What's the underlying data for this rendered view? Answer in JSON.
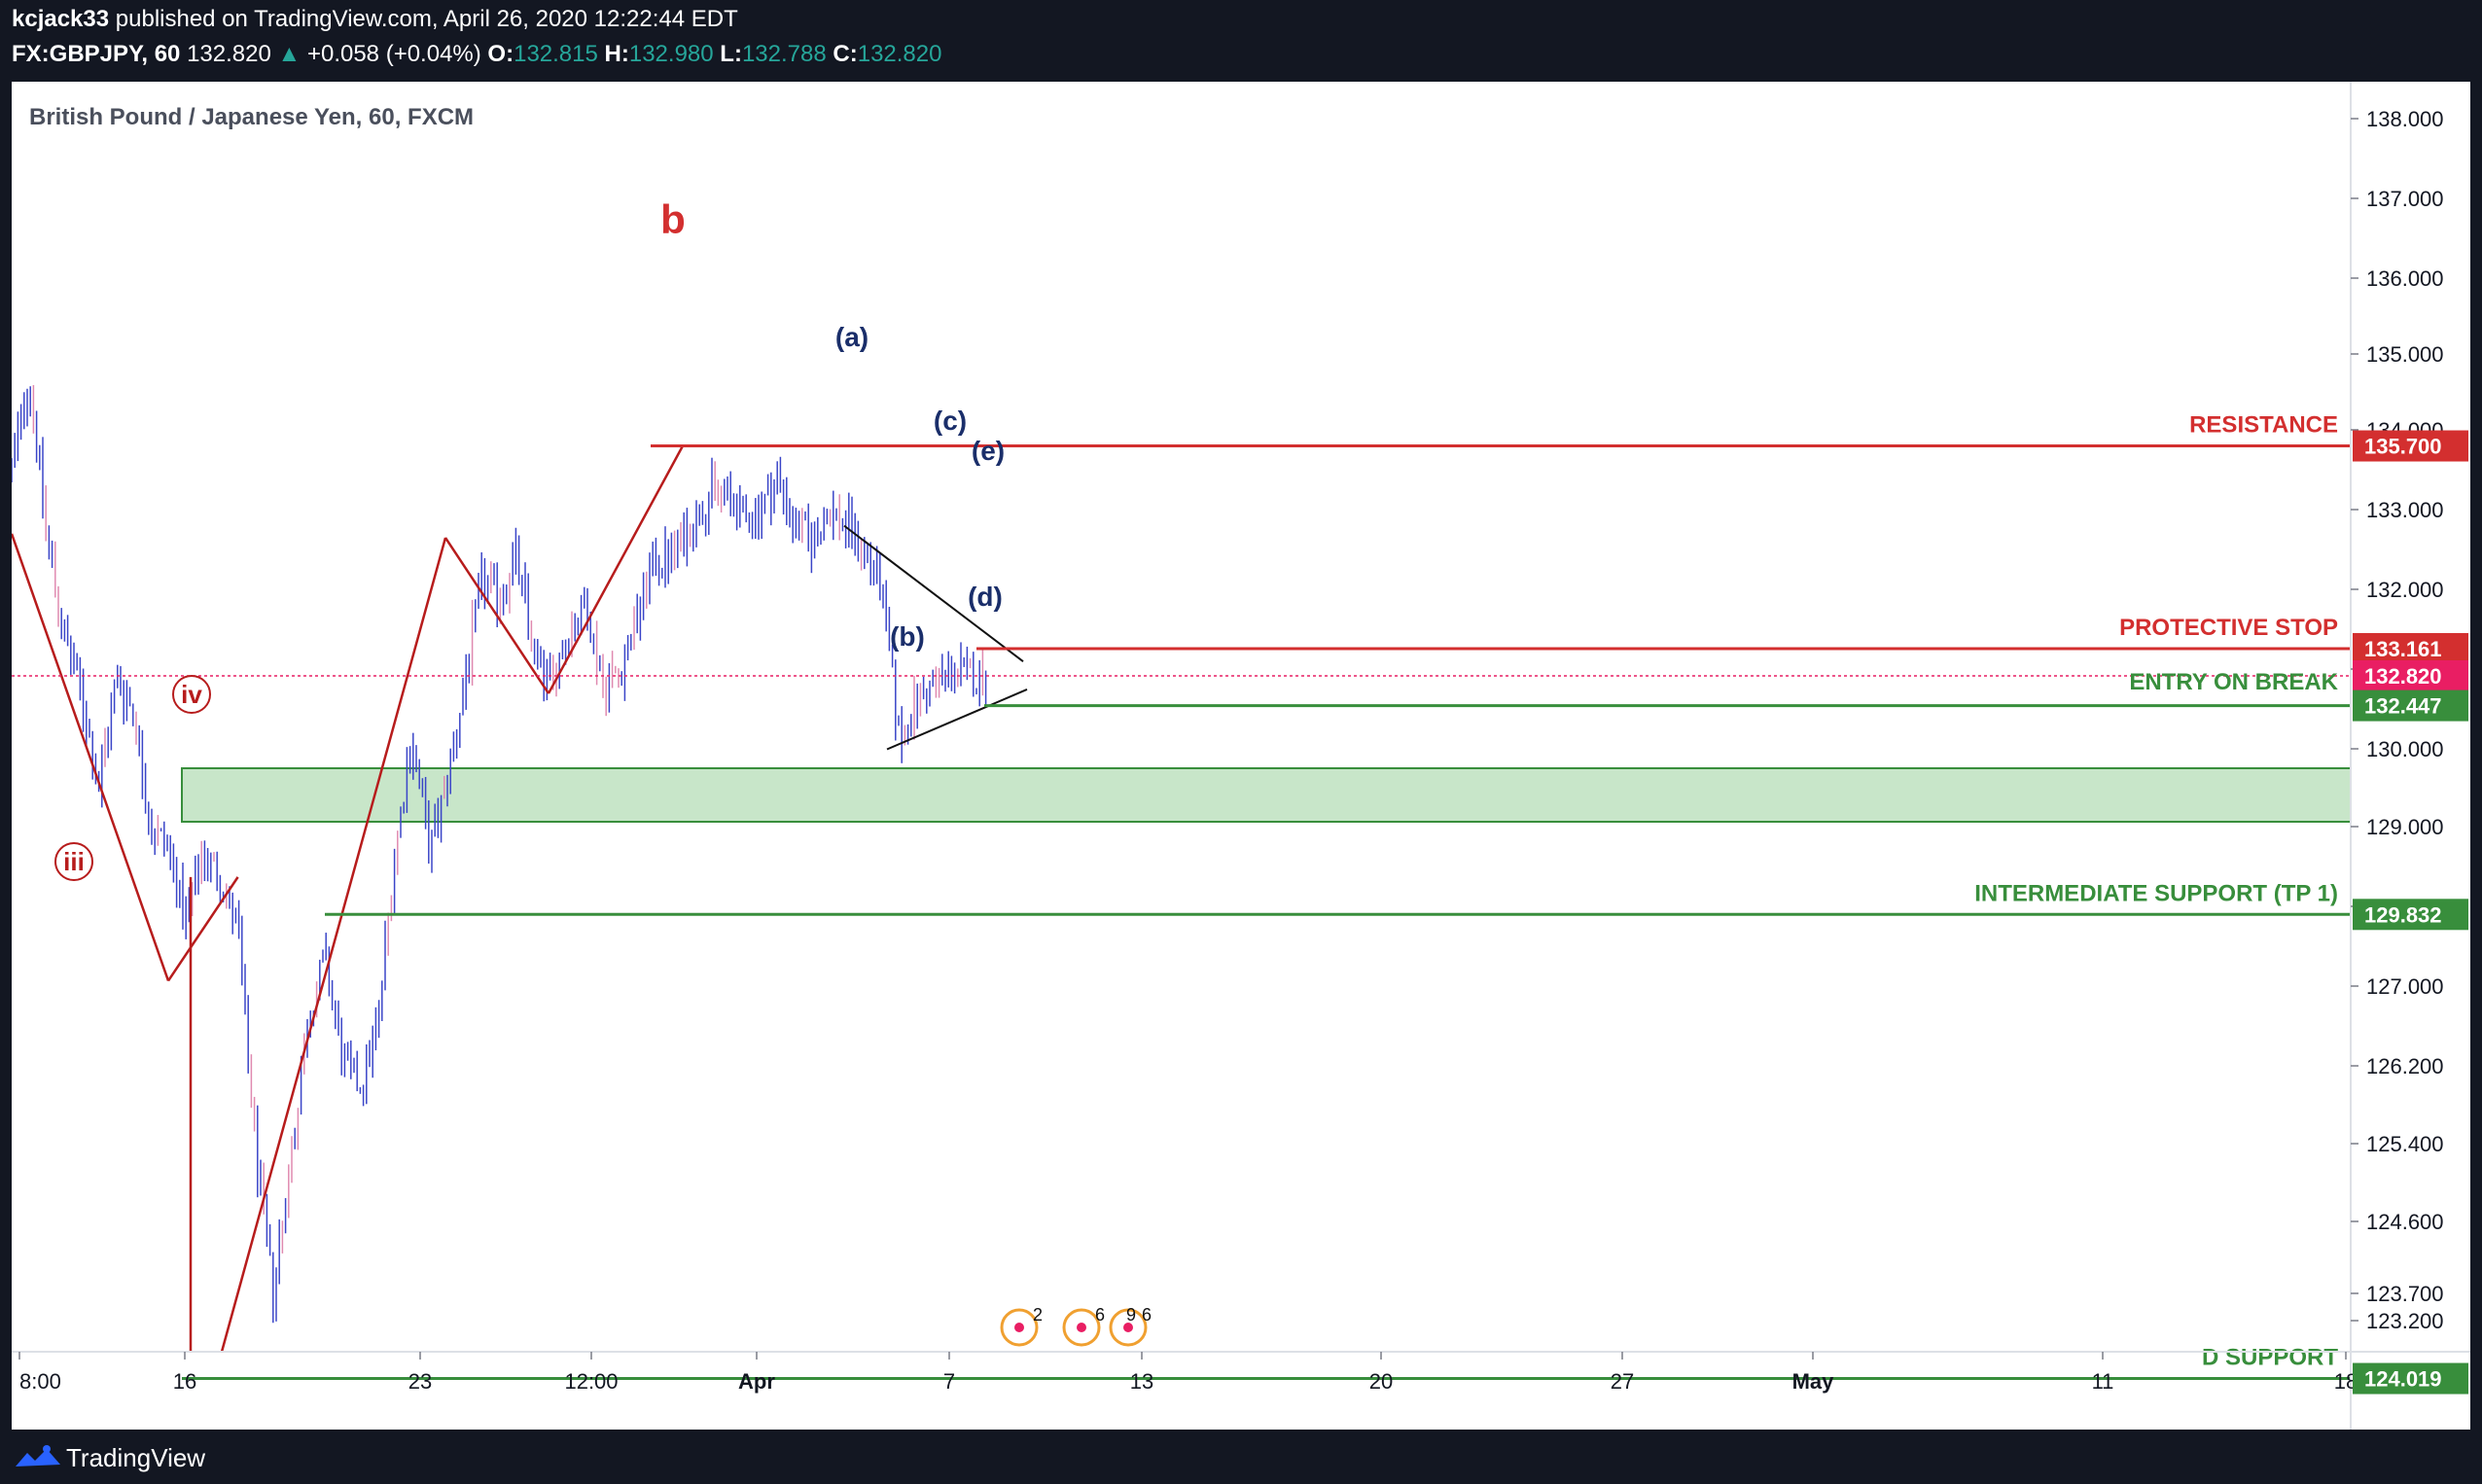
{
  "header": {
    "publisher": "kcjack33",
    "published_text": "published on TradingView.com, April 26, 2020 12:22:44 EDT",
    "symbol": "FX:GBPJPY, 60",
    "last": "132.820",
    "arrow": "▲",
    "change": "+0.058 (+0.04%)",
    "o_label": "O:",
    "o": "132.815",
    "h_label": "H:",
    "h": "132.980",
    "l_label": "L:",
    "l": "132.788",
    "c_label": "C:",
    "c": "132.820"
  },
  "footer": {
    "brand": "TradingView"
  },
  "colors": {
    "up": "#26a69a",
    "red": "#d32f2f",
    "green": "#388e3c",
    "navy": "#1a2e6a",
    "wave_red": "#b71c1c",
    "candle": "#3a45c8",
    "candle_alt": "#e08ab0",
    "current": "#e91e63"
  },
  "chart_data": {
    "type": "line",
    "title": "British Pound / Japanese Yen, 60, FXCM",
    "x_ticks": [
      "8:00",
      "16",
      "23",
      "12:00",
      "Apr",
      "7",
      "13",
      "20",
      "27",
      "May",
      "11",
      "18"
    ],
    "y_ticks": [
      "138.000",
      "137.000",
      "136.000",
      "135.000",
      "134.000",
      "133.000",
      "132.000",
      "131.000",
      "130.000",
      "129.000",
      "128.000",
      "127.000",
      "126.200",
      "125.400",
      "124.600",
      "123.700",
      "123.200"
    ],
    "ylim": [
      122.8,
      138.5
    ],
    "series": [
      {
        "values": [
          135.4,
          136.6,
          134.6,
          133.3,
          132.6,
          131.4,
          132.8,
          132.4,
          130.9,
          130.7,
          129.7,
          130.6,
          130.3,
          129.6,
          126.9,
          125.1,
          126.7,
          128.5,
          129.3,
          128.0,
          127.7,
          128.4,
          130.6,
          132.1,
          130.6,
          131.5,
          132.7,
          134.0,
          133.8,
          134.3,
          133.1,
          132.7,
          133.4,
          133.7,
          132.7,
          132.9,
          133.6,
          134.3,
          134.3,
          134.7,
          135.1,
          135.1,
          134.8,
          134.9,
          135.3,
          134.7,
          134.5,
          134.9,
          134.7,
          134.4,
          133.9,
          132.0,
          132.5,
          132.7,
          132.9,
          132.8,
          132.82
        ]
      }
    ],
    "levels": [
      {
        "label": "RESISTANCE",
        "value": 135.7,
        "tag": "135.700"
      },
      {
        "label": "PROTECTIVE STOP",
        "value": 133.161,
        "tag": "133.161"
      },
      {
        "label": "ENTRY ON BREAK",
        "value": 132.82,
        "tag": "132.820"
      },
      {
        "label": "",
        "value": 132.447,
        "tag": "132.447"
      },
      {
        "label": "INTERMEDIATE SUPPORT (TP 1)",
        "value": 129.832,
        "tag": "129.832"
      },
      {
        "label": "D SUPPORT",
        "value": 124.019,
        "tag": "124.019"
      }
    ],
    "wave_labels": [
      "b",
      "iv",
      "iii",
      "(a)",
      "(b)",
      "(c)",
      "(d)",
      "(e)"
    ],
    "event_badges": [
      "2",
      "6",
      "9",
      "6"
    ]
  }
}
